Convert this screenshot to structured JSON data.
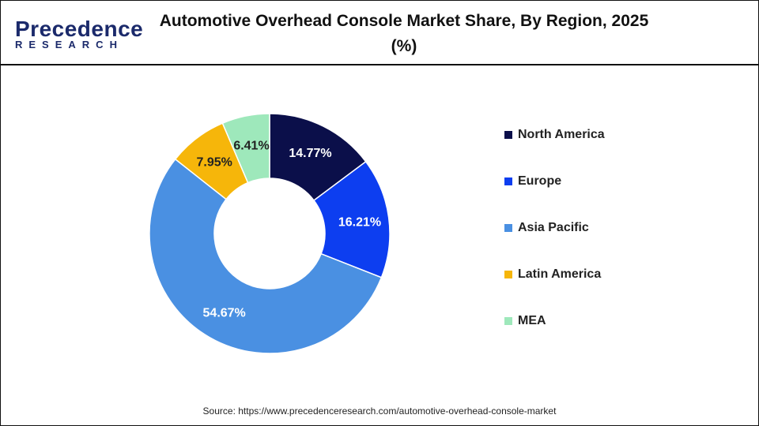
{
  "logo": {
    "line1": "Precedence",
    "line2": "RESEARCH"
  },
  "chart_data": {
    "type": "pie",
    "variant": "donut",
    "title": "Automotive Overhead Console Market Share, By Region, 2025 (%)",
    "categories": [
      "North America",
      "Europe",
      "Asia Pacific",
      "Latin America",
      "MEA"
    ],
    "values": [
      14.77,
      16.21,
      54.67,
      7.95,
      6.41
    ],
    "labels": [
      "14.77%",
      "16.21%",
      "54.67%",
      "7.95%",
      "6.41%"
    ],
    "colors": [
      "#0b0f4a",
      "#0d3ef0",
      "#4a90e2",
      "#f6b60a",
      "#9ee8bb"
    ],
    "label_colors": [
      "#ffffff",
      "#ffffff",
      "#ffffff",
      "#222222",
      "#222222"
    ],
    "legend_position": "right"
  },
  "source": "Source: https://www.precedenceresearch.com/automotive-overhead-console-market"
}
